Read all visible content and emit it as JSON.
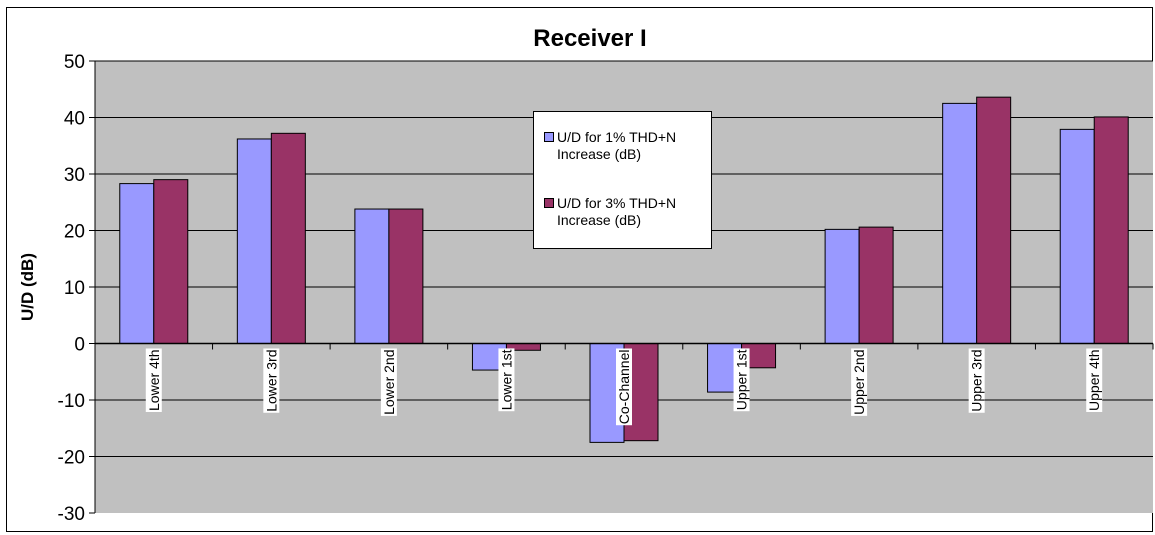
{
  "chart_data": {
    "type": "bar",
    "title": "Receiver I",
    "xlabel": "",
    "ylabel": "U/D (dB)",
    "ylim": [
      -30,
      50
    ],
    "yticks": [
      50,
      40,
      30,
      20,
      10,
      0,
      -10,
      -20,
      -30
    ],
    "ytick_labels": [
      "50",
      "40",
      "30",
      "20",
      "10",
      "0",
      "-10",
      "-20",
      "-30"
    ],
    "grid": true,
    "legend_position": "top-center",
    "plot_background": "#C0C0C0",
    "categories": [
      "Lower 4th",
      "Lower 3rd",
      "Lower 2nd",
      "Lower 1st",
      "Co-Channel",
      "Upper 1st",
      "Upper 2nd",
      "Upper 3rd",
      "Upper 4th"
    ],
    "series": [
      {
        "name": "U/D for 1% THD+N Increase (dB)",
        "color": "#9999FF",
        "values": [
          28.3,
          36.2,
          23.8,
          -4.7,
          -17.5,
          -8.6,
          20.2,
          42.5,
          37.9
        ]
      },
      {
        "name": "U/D for 3% THD+N Increase (dB)",
        "color": "#993366",
        "values": [
          29.0,
          37.2,
          23.8,
          -1.2,
          -17.2,
          -4.3,
          20.6,
          43.6,
          40.1
        ]
      }
    ]
  }
}
